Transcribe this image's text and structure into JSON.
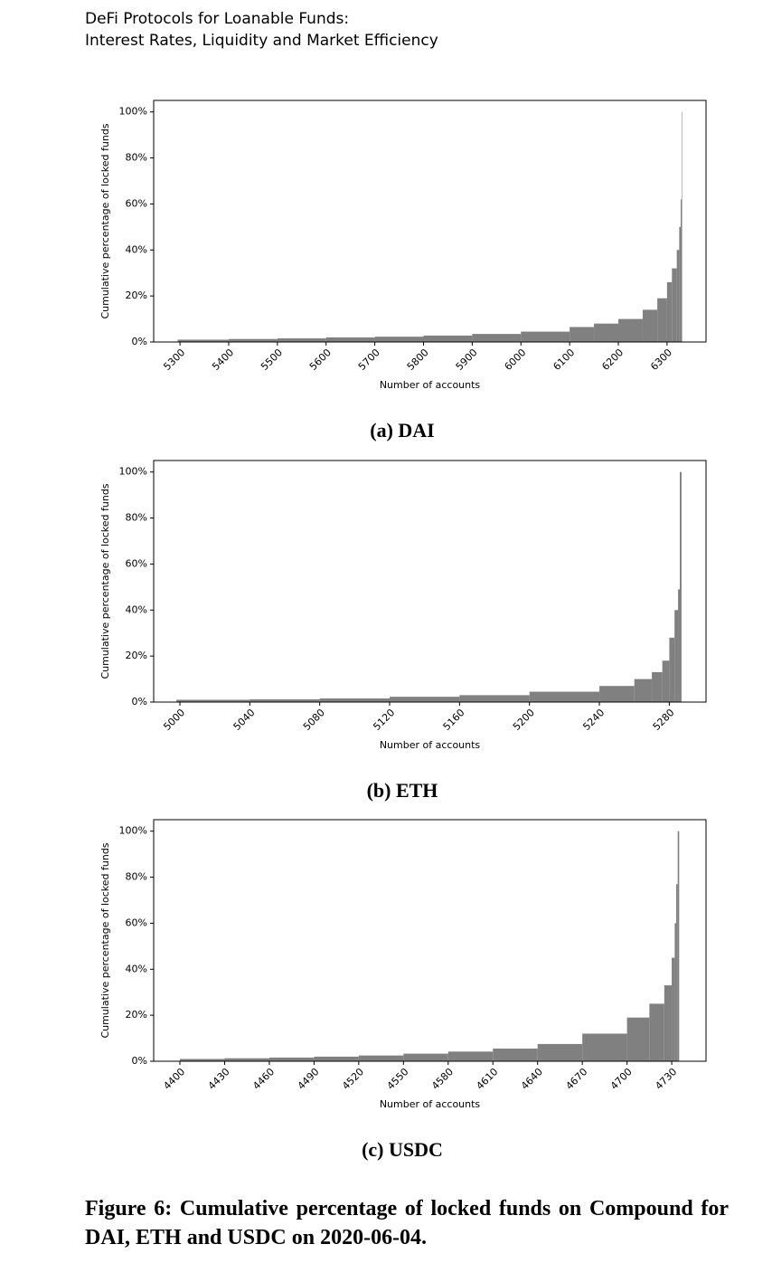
{
  "header": {
    "line1": "DeFi Protocols for Loanable Funds:",
    "line2": "Interest Rates, Liquidity and Market Efficiency"
  },
  "chart_data": [
    {
      "type": "bar",
      "subcaption": "(a) DAI",
      "xlabel": "Number of accounts",
      "ylabel": "Cumulative percentage of locked funds",
      "color": "#808080",
      "x": [
        5295,
        5400,
        5500,
        5600,
        5700,
        5800,
        5900,
        6000,
        6100,
        6150,
        6200,
        6250,
        6280,
        6300,
        6310,
        6320,
        6325,
        6328,
        6330
      ],
      "values": [
        1,
        1.3,
        1.6,
        2,
        2.3,
        2.8,
        3.5,
        4.5,
        6.5,
        8,
        10,
        14,
        19,
        26,
        32,
        40,
        50,
        62,
        100
      ],
      "xlim": [
        5246,
        6380
      ],
      "ylim": [
        0,
        105
      ],
      "xticks": [
        5300,
        5400,
        5500,
        5600,
        5700,
        5800,
        5900,
        6000,
        6100,
        6200,
        6300
      ],
      "yticks": [
        {
          "value": 0,
          "label": "0%"
        },
        {
          "value": 20,
          "label": "20%"
        },
        {
          "value": 40,
          "label": "40%"
        },
        {
          "value": 60,
          "label": "60%"
        },
        {
          "value": 80,
          "label": "80%"
        },
        {
          "value": 100,
          "label": "100%"
        }
      ]
    },
    {
      "type": "bar",
      "subcaption": "(b) ETH",
      "xlabel": "Number of accounts",
      "ylabel": "Cumulative percentage of locked funds",
      "color": "#808080",
      "x": [
        4998,
        5040,
        5080,
        5120,
        5160,
        5200,
        5240,
        5260,
        5270,
        5276,
        5280,
        5283,
        5285,
        5286
      ],
      "values": [
        1,
        1.2,
        1.6,
        2.3,
        3,
        4.5,
        7,
        10,
        13,
        18,
        28,
        40,
        49,
        100
      ],
      "xlim": [
        4985,
        5301
      ],
      "ylim": [
        0,
        105
      ],
      "xticks": [
        5000,
        5040,
        5080,
        5120,
        5160,
        5200,
        5240,
        5280
      ],
      "yticks": [
        {
          "value": 0,
          "label": "0%"
        },
        {
          "value": 20,
          "label": "20%"
        },
        {
          "value": 40,
          "label": "40%"
        },
        {
          "value": 60,
          "label": "60%"
        },
        {
          "value": 80,
          "label": "80%"
        },
        {
          "value": 100,
          "label": "100%"
        }
      ]
    },
    {
      "type": "bar",
      "subcaption": "(c) USDC",
      "xlabel": "Number of accounts",
      "ylabel": "Cumulative percentage of locked funds",
      "color": "#808080",
      "x": [
        4400,
        4430,
        4460,
        4490,
        4520,
        4550,
        4580,
        4610,
        4640,
        4670,
        4700,
        4715,
        4725,
        4730,
        4732,
        4733,
        4734
      ],
      "values": [
        1,
        1.3,
        1.6,
        2,
        2.5,
        3.3,
        4.2,
        5.5,
        7.5,
        12,
        19,
        25,
        33,
        45,
        60,
        77,
        100
      ],
      "xlim": [
        4382.4,
        4753
      ],
      "ylim": [
        0,
        105
      ],
      "xticks": [
        4400,
        4430,
        4460,
        4490,
        4520,
        4550,
        4580,
        4610,
        4640,
        4670,
        4700,
        4730
      ],
      "yticks": [
        {
          "value": 0,
          "label": "0%"
        },
        {
          "value": 20,
          "label": "20%"
        },
        {
          "value": 40,
          "label": "40%"
        },
        {
          "value": 60,
          "label": "60%"
        },
        {
          "value": 80,
          "label": "80%"
        },
        {
          "value": 100,
          "label": "100%"
        }
      ]
    }
  ],
  "caption": "Figure 6: Cumulative percentage of locked funds on Compound for DAI, ETH and USDC on 2020-06-04."
}
